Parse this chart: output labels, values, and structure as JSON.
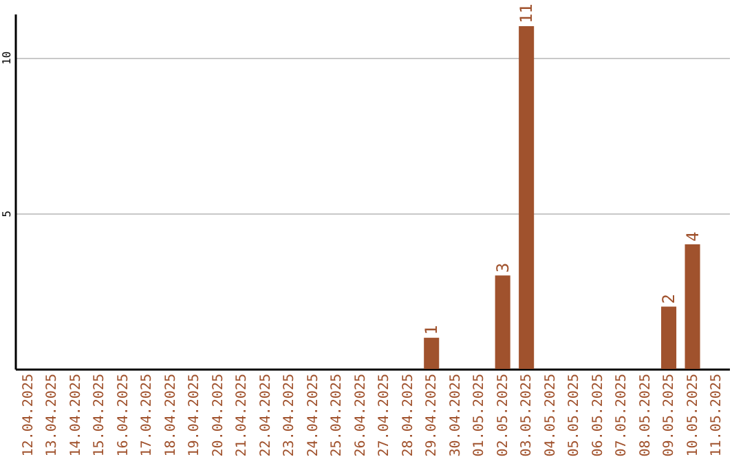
{
  "chart_data": {
    "type": "bar",
    "categories": [
      "12.04.2025",
      "13.04.2025",
      "14.04.2025",
      "15.04.2025",
      "16.04.2025",
      "17.04.2025",
      "18.04.2025",
      "19.04.2025",
      "20.04.2025",
      "21.04.2025",
      "22.04.2025",
      "23.04.2025",
      "24.04.2025",
      "25.04.2025",
      "26.04.2025",
      "27.04.2025",
      "28.04.2025",
      "29.04.2025",
      "30.04.2025",
      "01.05.2025",
      "02.05.2025",
      "03.05.2025",
      "04.05.2025",
      "05.05.2025",
      "06.05.2025",
      "07.05.2025",
      "08.05.2025",
      "09.05.2025",
      "10.05.2025",
      "11.05.2025"
    ],
    "values": [
      0,
      0,
      0,
      0,
      0,
      0,
      0,
      0,
      0,
      0,
      0,
      0,
      0,
      0,
      0,
      0,
      0,
      1,
      0,
      0,
      3,
      11,
      0,
      0,
      0,
      0,
      0,
      2,
      4,
      0
    ],
    "value_labels": [
      null,
      null,
      null,
      null,
      null,
      null,
      null,
      null,
      null,
      null,
      null,
      null,
      null,
      null,
      null,
      null,
      null,
      "1",
      null,
      null,
      "3",
      "11",
      null,
      null,
      null,
      null,
      null,
      "2",
      "4",
      null
    ],
    "color": "#a0522d",
    "ylim": [
      0,
      11.4
    ],
    "yticks": [
      5,
      10
    ],
    "grid": "y"
  }
}
